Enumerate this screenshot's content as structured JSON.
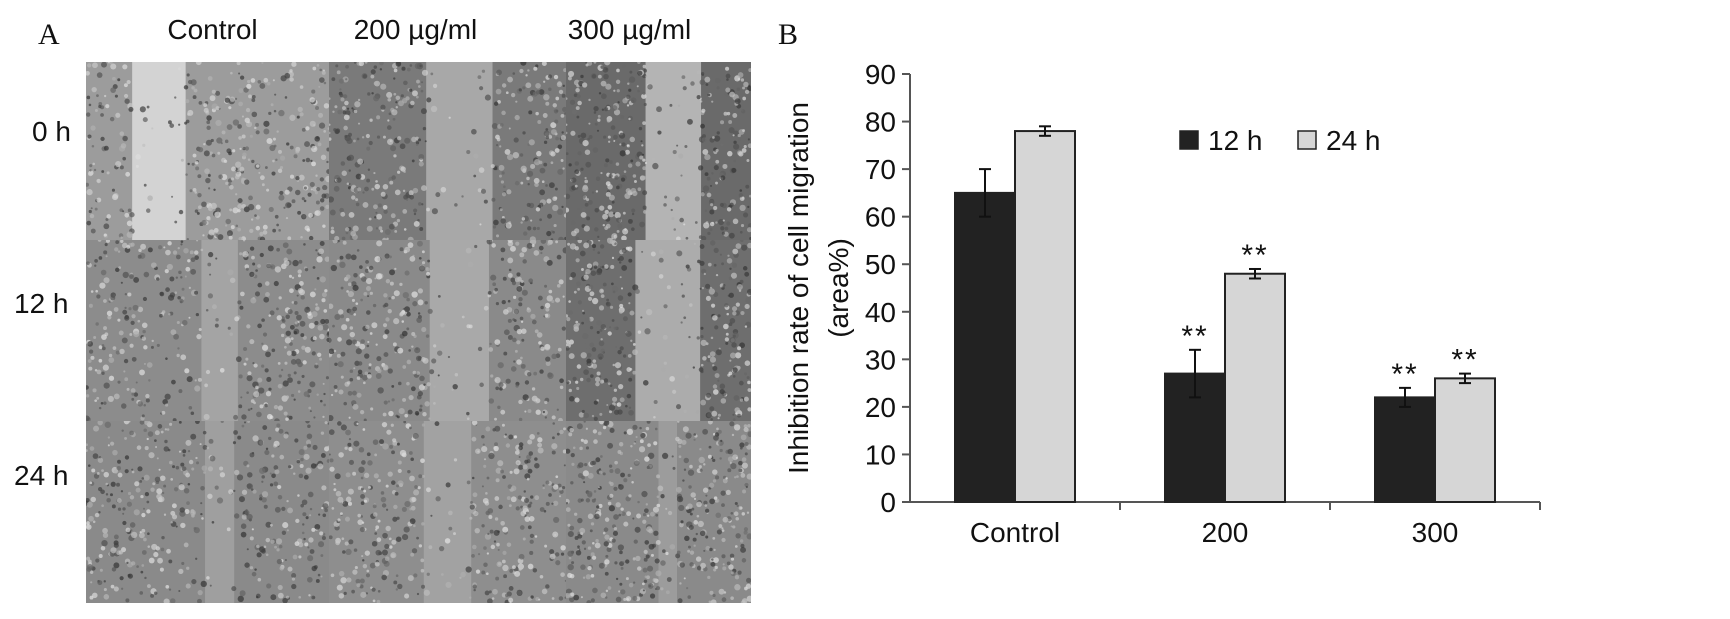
{
  "panel_a": {
    "label": "A",
    "columns": [
      "Control",
      "200 µg/ml",
      "300 µg/ml"
    ],
    "rows": [
      "0 h",
      "12 h",
      "24 h"
    ]
  },
  "panel_b": {
    "label": "B"
  },
  "chart_data": {
    "type": "bar",
    "categories": [
      "Control",
      "200",
      "300"
    ],
    "series": [
      {
        "name": "12 h",
        "values": [
          65,
          27,
          22
        ],
        "errors": [
          5,
          5,
          2
        ],
        "color": "#222222",
        "significance": [
          "",
          "**",
          "**"
        ]
      },
      {
        "name": "24 h",
        "values": [
          78,
          48,
          26
        ],
        "errors": [
          1,
          1,
          1
        ],
        "color": "#d6d6d6",
        "significance": [
          "",
          "**",
          "**"
        ]
      }
    ],
    "ylabel": "Inhibition rate of cell migration (area%)",
    "ylabel_lines": [
      "Inhibition rate of cell migration",
      "(area%)"
    ],
    "yticks": [
      0,
      10,
      20,
      30,
      40,
      50,
      60,
      70,
      80,
      90
    ],
    "ylim": [
      0,
      90
    ],
    "grid": false,
    "legend_position": "top-right"
  }
}
